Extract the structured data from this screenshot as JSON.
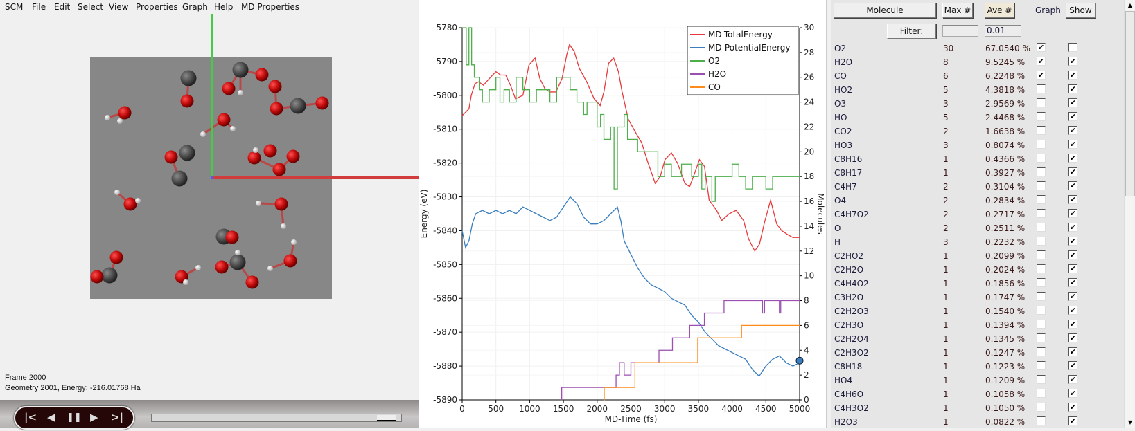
{
  "menu": [
    "SCM",
    "File",
    "Edit",
    "Select",
    "View",
    "Properties",
    "Graph",
    "Help",
    "MD Properties"
  ],
  "viewer": {
    "frame": "Frame 2000",
    "geometry": "Geometry 2001, Energy: -216.01768 Ha",
    "slider_position": 0.95
  },
  "playback": {
    "first": "|<",
    "prev": "◀",
    "pause": "❚❚",
    "next": "▶",
    "last": ">|"
  },
  "panel": {
    "molecule_btn": "Molecule",
    "max_btn": "Max #",
    "ave_btn": "Ave #",
    "graph_label": "Graph",
    "show_btn": "Show",
    "filter_btn": "Filter:",
    "filter_max": "",
    "filter_ave": "0.01"
  },
  "molecules": [
    {
      "name": "O2",
      "max": "30",
      "ave": "67.0540 %",
      "graph": true,
      "show": false
    },
    {
      "name": "H2O",
      "max": "8",
      "ave": "9.5245 %",
      "graph": true,
      "show": true
    },
    {
      "name": "CO",
      "max": "6",
      "ave": "6.2248 %",
      "graph": true,
      "show": true
    },
    {
      "name": "HO2",
      "max": "5",
      "ave": "4.3818 %",
      "graph": false,
      "show": true
    },
    {
      "name": "O3",
      "max": "3",
      "ave": "2.9569 %",
      "graph": false,
      "show": true
    },
    {
      "name": "HO",
      "max": "5",
      "ave": "2.4468 %",
      "graph": false,
      "show": true
    },
    {
      "name": "CO2",
      "max": "2",
      "ave": "1.6638 %",
      "graph": false,
      "show": true
    },
    {
      "name": "HO3",
      "max": "3",
      "ave": "0.8074 %",
      "graph": false,
      "show": true
    },
    {
      "name": "C8H16",
      "max": "1",
      "ave": "0.4366 %",
      "graph": false,
      "show": true
    },
    {
      "name": "C8H17",
      "max": "1",
      "ave": "0.3927 %",
      "graph": false,
      "show": true
    },
    {
      "name": "C4H7",
      "max": "2",
      "ave": "0.3104 %",
      "graph": false,
      "show": true
    },
    {
      "name": "O4",
      "max": "2",
      "ave": "0.2834 %",
      "graph": false,
      "show": true
    },
    {
      "name": "C4H7O2",
      "max": "2",
      "ave": "0.2717 %",
      "graph": false,
      "show": true
    },
    {
      "name": "O",
      "max": "2",
      "ave": "0.2511 %",
      "graph": false,
      "show": true
    },
    {
      "name": "H",
      "max": "3",
      "ave": "0.2232 %",
      "graph": false,
      "show": true
    },
    {
      "name": "C2HO2",
      "max": "1",
      "ave": "0.2099 %",
      "graph": false,
      "show": true
    },
    {
      "name": "C2H2O",
      "max": "1",
      "ave": "0.2024 %",
      "graph": false,
      "show": true
    },
    {
      "name": "C4H4O2",
      "max": "1",
      "ave": "0.1856 %",
      "graph": false,
      "show": true
    },
    {
      "name": "C3H2O",
      "max": "1",
      "ave": "0.1747 %",
      "graph": false,
      "show": true
    },
    {
      "name": "C2H2O3",
      "max": "1",
      "ave": "0.1540 %",
      "graph": false,
      "show": true
    },
    {
      "name": "C2H3O",
      "max": "1",
      "ave": "0.1394 %",
      "graph": false,
      "show": true
    },
    {
      "name": "C2H2O4",
      "max": "1",
      "ave": "0.1345 %",
      "graph": false,
      "show": true
    },
    {
      "name": "C2H3O2",
      "max": "1",
      "ave": "0.1247 %",
      "graph": false,
      "show": true
    },
    {
      "name": "C8H18",
      "max": "1",
      "ave": "0.1223 %",
      "graph": false,
      "show": true
    },
    {
      "name": "HO4",
      "max": "1",
      "ave": "0.1209 %",
      "graph": false,
      "show": true
    },
    {
      "name": "C4H6O",
      "max": "1",
      "ave": "0.1058 %",
      "graph": false,
      "show": true
    },
    {
      "name": "C4H3O2",
      "max": "1",
      "ave": "0.1050 %",
      "graph": false,
      "show": true
    },
    {
      "name": "H2O3",
      "max": "1",
      "ave": "0.0822 %",
      "graph": false,
      "show": true
    }
  ],
  "chart_data": {
    "type": "line",
    "xlabel": "MD-Time (fs)",
    "ylabel": "Energy (eV)",
    "y2label": "Molecules",
    "xlim": [
      0,
      5000
    ],
    "ylim": [
      -5890,
      -5780
    ],
    "y2lim": [
      0,
      30
    ],
    "xticks": [
      0,
      500,
      1000,
      1500,
      2000,
      2500,
      3000,
      3500,
      4000,
      4500,
      5000
    ],
    "yticks": [
      -5780,
      -5790,
      -5800,
      -5810,
      -5820,
      -5830,
      -5840,
      -5850,
      -5860,
      -5870,
      -5880,
      -5890
    ],
    "y2ticks": [
      0,
      2,
      4,
      6,
      8,
      10,
      12,
      14,
      16,
      18,
      20,
      22,
      24,
      26,
      28,
      30
    ],
    "grid": true,
    "legend": "top-right",
    "current_frame_marker": {
      "x": 5000,
      "y": -5878.4
    },
    "series": [
      {
        "name": "MD-TotalEnergy",
        "axis": "left",
        "color": "#e8393a",
        "points": [
          [
            0,
            -5806
          ],
          [
            100,
            -5804
          ],
          [
            135,
            -5800
          ],
          [
            190,
            -5796.5
          ],
          [
            245,
            -5796
          ],
          [
            315,
            -5797
          ],
          [
            405,
            -5795
          ],
          [
            500,
            -5793
          ],
          [
            570,
            -5794
          ],
          [
            645,
            -5794
          ],
          [
            715,
            -5797
          ],
          [
            790,
            -5801
          ],
          [
            900,
            -5800
          ],
          [
            990,
            -5791
          ],
          [
            1080,
            -5789
          ],
          [
            1150,
            -5795
          ],
          [
            1225,
            -5798
          ],
          [
            1300,
            -5799
          ],
          [
            1390,
            -5799
          ],
          [
            1480,
            -5795
          ],
          [
            1550,
            -5788
          ],
          [
            1590,
            -5785
          ],
          [
            1660,
            -5787
          ],
          [
            1735,
            -5792
          ],
          [
            1845,
            -5796
          ],
          [
            1955,
            -5801
          ],
          [
            2045,
            -5803
          ],
          [
            2100,
            -5799
          ],
          [
            2170,
            -5790.5
          ],
          [
            2245,
            -5789
          ],
          [
            2315,
            -5793
          ],
          [
            2370,
            -5799
          ],
          [
            2460,
            -5807
          ],
          [
            2570,
            -5811
          ],
          [
            2660,
            -5814
          ],
          [
            2755,
            -5820
          ],
          [
            2860,
            -5826
          ],
          [
            2935,
            -5824
          ],
          [
            3005,
            -5819
          ],
          [
            3100,
            -5817
          ],
          [
            3190,
            -5820
          ],
          [
            3300,
            -5826
          ],
          [
            3370,
            -5827
          ],
          [
            3445,
            -5823
          ],
          [
            3515,
            -5819
          ],
          [
            3590,
            -5821
          ],
          [
            3660,
            -5831
          ],
          [
            3770,
            -5834
          ],
          [
            3845,
            -5837
          ],
          [
            3955,
            -5835
          ],
          [
            4060,
            -5834
          ],
          [
            4170,
            -5837
          ],
          [
            4245,
            -5842.5
          ],
          [
            4335,
            -5846
          ],
          [
            4405,
            -5844
          ],
          [
            4480,
            -5837.5
          ],
          [
            4570,
            -5831
          ],
          [
            4660,
            -5838
          ],
          [
            4735,
            -5840
          ],
          [
            4810,
            -5841
          ],
          [
            4900,
            -5842
          ],
          [
            5000,
            -5842
          ]
        ]
      },
      {
        "name": "MD-PotentialEnergy",
        "axis": "left",
        "color": "#3a7ebf",
        "points": [
          [
            0,
            -5840
          ],
          [
            50,
            -5845
          ],
          [
            100,
            -5843
          ],
          [
            150,
            -5838
          ],
          [
            200,
            -5835
          ],
          [
            300,
            -5834
          ],
          [
            400,
            -5835
          ],
          [
            500,
            -5834
          ],
          [
            600,
            -5835
          ],
          [
            700,
            -5834
          ],
          [
            800,
            -5835
          ],
          [
            900,
            -5833
          ],
          [
            1000,
            -5834
          ],
          [
            1100,
            -5835
          ],
          [
            1200,
            -5836
          ],
          [
            1300,
            -5837
          ],
          [
            1400,
            -5836
          ],
          [
            1500,
            -5833
          ],
          [
            1600,
            -5830
          ],
          [
            1700,
            -5832
          ],
          [
            1800,
            -5836
          ],
          [
            1900,
            -5838
          ],
          [
            2000,
            -5838
          ],
          [
            2100,
            -5837
          ],
          [
            2200,
            -5835
          ],
          [
            2300,
            -5833
          ],
          [
            2350,
            -5837
          ],
          [
            2400,
            -5843
          ],
          [
            2500,
            -5847
          ],
          [
            2600,
            -5851
          ],
          [
            2700,
            -5854
          ],
          [
            2800,
            -5856
          ],
          [
            2900,
            -5857
          ],
          [
            3000,
            -5858
          ],
          [
            3100,
            -5860
          ],
          [
            3200,
            -5861
          ],
          [
            3300,
            -5862
          ],
          [
            3400,
            -5865
          ],
          [
            3500,
            -5867
          ],
          [
            3600,
            -5870
          ],
          [
            3700,
            -5872
          ],
          [
            3800,
            -5874
          ],
          [
            3900,
            -5875
          ],
          [
            4000,
            -5876
          ],
          [
            4100,
            -5877
          ],
          [
            4200,
            -5878
          ],
          [
            4300,
            -5881
          ],
          [
            4400,
            -5883
          ],
          [
            4500,
            -5880
          ],
          [
            4600,
            -5878
          ],
          [
            4700,
            -5877
          ],
          [
            4800,
            -5879
          ],
          [
            4900,
            -5880
          ],
          [
            5000,
            -5879
          ]
        ]
      },
      {
        "name": "O2",
        "axis": "right",
        "step": true,
        "color": "#4caf4a",
        "points": [
          [
            0,
            30
          ],
          [
            60,
            27
          ],
          [
            100,
            30
          ],
          [
            140,
            27
          ],
          [
            180,
            26
          ],
          [
            260,
            25
          ],
          [
            300,
            24
          ],
          [
            400,
            25
          ],
          [
            500,
            26
          ],
          [
            560,
            24
          ],
          [
            620,
            25
          ],
          [
            700,
            24
          ],
          [
            800,
            26
          ],
          [
            900,
            25
          ],
          [
            1000,
            24
          ],
          [
            1100,
            25
          ],
          [
            1300,
            24
          ],
          [
            1400,
            26
          ],
          [
            1500,
            26
          ],
          [
            1600,
            25
          ],
          [
            1700,
            24
          ],
          [
            1800,
            23
          ],
          [
            1850,
            24
          ],
          [
            2000,
            22
          ],
          [
            2050,
            23
          ],
          [
            2100,
            21
          ],
          [
            2200,
            22
          ],
          [
            2250,
            17
          ],
          [
            2300,
            22
          ],
          [
            2400,
            23
          ],
          [
            2450,
            21
          ],
          [
            2600,
            20
          ],
          [
            2750,
            20
          ],
          [
            2900,
            18
          ],
          [
            3000,
            19
          ],
          [
            3100,
            18
          ],
          [
            3250,
            19
          ],
          [
            3400,
            18
          ],
          [
            3500,
            19
          ],
          [
            3550,
            17
          ],
          [
            3600,
            18
          ],
          [
            3700,
            16
          ],
          [
            3750,
            18
          ],
          [
            3900,
            18
          ],
          [
            4000,
            19
          ],
          [
            4100,
            18
          ],
          [
            4200,
            17
          ],
          [
            4300,
            18
          ],
          [
            4500,
            17
          ],
          [
            4600,
            18
          ],
          [
            4900,
            18
          ],
          [
            5000,
            18
          ]
        ]
      },
      {
        "name": "H2O",
        "axis": "right",
        "step": true,
        "color": "#9b4fb0",
        "points": [
          [
            1473,
            0
          ],
          [
            1475,
            1
          ],
          [
            2280,
            2
          ],
          [
            2330,
            3
          ],
          [
            2400,
            2
          ],
          [
            2500,
            3
          ],
          [
            2916,
            4
          ],
          [
            3116,
            5
          ],
          [
            3371,
            6
          ],
          [
            3589,
            7
          ],
          [
            3880,
            8
          ],
          [
            4450,
            7
          ],
          [
            4480,
            8
          ],
          [
            4700,
            7
          ],
          [
            4720,
            8
          ],
          [
            5000,
            8
          ]
        ]
      },
      {
        "name": "CO",
        "axis": "right",
        "step": true,
        "color": "#ff8c1a",
        "points": [
          [
            2100,
            0
          ],
          [
            2105,
            1
          ],
          [
            2550,
            1
          ],
          [
            2560,
            3
          ],
          [
            3480,
            3
          ],
          [
            3490,
            5
          ],
          [
            4130,
            5
          ],
          [
            4140,
            6
          ],
          [
            5000,
            6
          ]
        ]
      }
    ]
  }
}
